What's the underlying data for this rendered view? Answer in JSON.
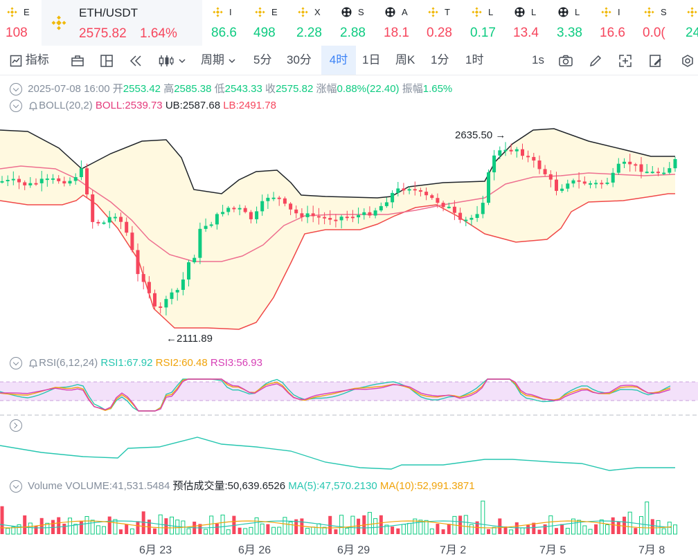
{
  "ticker": {
    "items": [
      {
        "sym": "E",
        "val": "108",
        "dir": "down",
        "icon": "bnb-icon"
      },
      {
        "sym": "ETH/USDT",
        "val": "2575.82",
        "pct": "1.64%",
        "dir": "down",
        "icon": "bnb-icon",
        "active": true
      },
      {
        "sym": "I",
        "val": "86.6",
        "dir": "up",
        "icon": "bnb-icon"
      },
      {
        "sym": "E",
        "val": "498",
        "dir": "up",
        "icon": "bnb-icon"
      },
      {
        "sym": "X",
        "val": "2.28",
        "dir": "up",
        "icon": "bnb-icon"
      },
      {
        "sym": "S",
        "val": "2.88",
        "dir": "up",
        "icon": "ball-icon"
      },
      {
        "sym": "A",
        "val": "18.1",
        "dir": "down",
        "icon": "ball-icon"
      },
      {
        "sym": "T",
        "val": "0.28",
        "dir": "down",
        "icon": "bnb-icon"
      },
      {
        "sym": "L",
        "val": "0.17",
        "dir": "up",
        "icon": "bnb-icon"
      },
      {
        "sym": "L",
        "val": "13.4",
        "dir": "down",
        "icon": "ball-icon"
      },
      {
        "sym": "L",
        "val": "3.38",
        "dir": "up",
        "icon": "ball-icon"
      },
      {
        "sym": "I",
        "val": "16.6",
        "dir": "down",
        "icon": "bnb-icon"
      },
      {
        "sym": "S",
        "val": "0.0(",
        "dir": "down",
        "icon": "bnb-icon"
      },
      {
        "sym": "",
        "val": "24",
        "dir": "up",
        "icon": "bnb-icon"
      }
    ]
  },
  "toolbar": {
    "indicators_label": "指标",
    "period_label": "周期",
    "intervals": [
      "5分",
      "30分",
      "4时",
      "1日",
      "周K",
      "1分",
      "1时"
    ],
    "selected_interval": "4时",
    "speed_label": "1s"
  },
  "ohlc": {
    "time": "2025-07-08 16:00",
    "open_label": "开",
    "open": "2553.42",
    "high_label": "高",
    "high": "2585.38",
    "low_label": "低",
    "low": "2543.33",
    "close_label": "收",
    "close": "2575.82",
    "change_label": "涨幅",
    "change": "0.88%(22.40)",
    "amp_label": "振幅",
    "amp": "1.65%"
  },
  "boll": {
    "name": "BOLL(20,2)",
    "mid": "BOLL:2539.73",
    "ub": "UB:2587.68",
    "lb": "LB:2491.78"
  },
  "rsi": {
    "name": "RSI(6,12,24)",
    "rsi1": "RSI1:67.92",
    "rsi2": "RSI2:60.48",
    "rsi3": "RSI3:56.93"
  },
  "volume": {
    "name": "Volume",
    "vol": "VOLUME:41,531.5484",
    "est": "预估成交量:50,639.6526",
    "ma5": "MA(5):47,570.2130",
    "ma10": "MA(10):52,991.3871"
  },
  "annotations": {
    "high": "2635.50",
    "low": "2111.89"
  },
  "x_labels": [
    "6月 23",
    "6月 26",
    "6月 29",
    "7月 2",
    "7月 5",
    "7月 8"
  ],
  "colors": {
    "up": "#0ecb81",
    "down": "#f6465d",
    "boll_mid": "#e4397a",
    "boll_band": "#fff9e0",
    "rsi_band": "#f3e1fa"
  },
  "chart_data": {
    "type": "line",
    "series": [
      {
        "name": "BOLL",
        "values": [
          2539.73
        ]
      },
      {
        "name": "UB",
        "values": [
          2587.68
        ]
      },
      {
        "name": "LB",
        "values": [
          2491.78
        ]
      }
    ],
    "ylim": [
      2100,
      2700
    ],
    "low_marker": 2111.89,
    "high_marker": 2635.5
  }
}
